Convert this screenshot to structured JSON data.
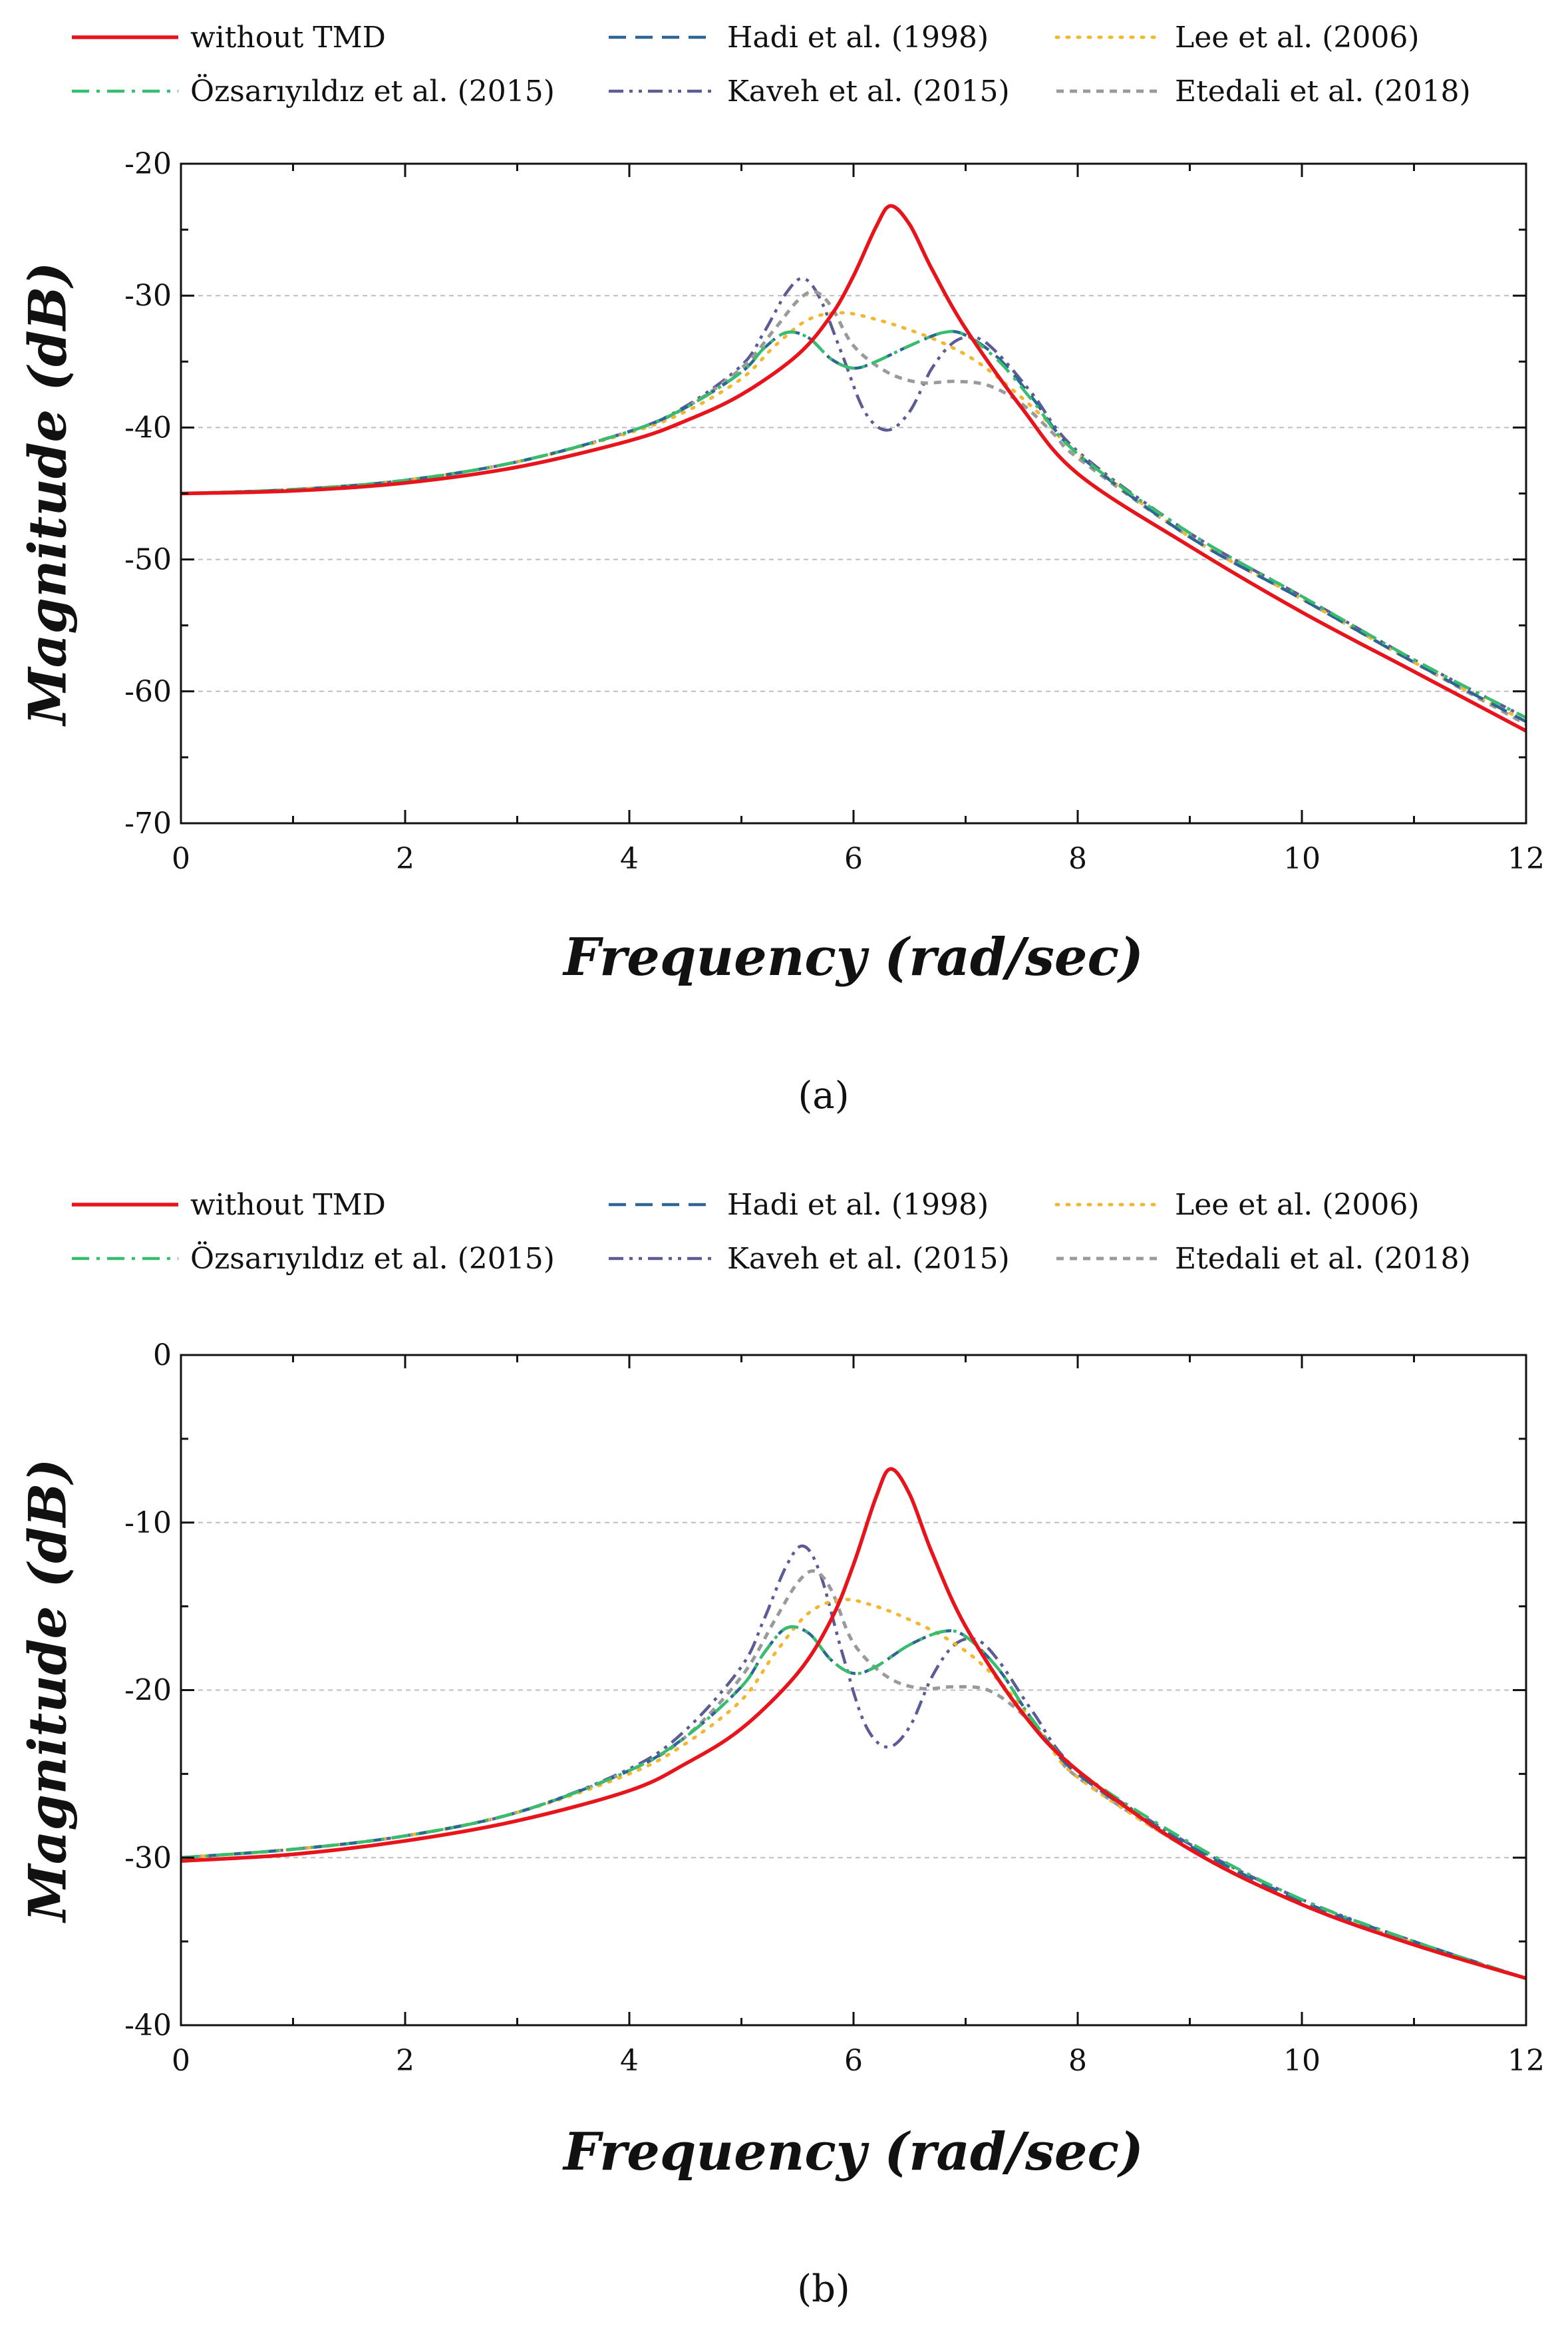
{
  "figure": {
    "panels": [
      {
        "caption": "(a)"
      },
      {
        "caption": "(b)"
      }
    ]
  },
  "legend_entries": [
    {
      "label": "without TMD",
      "color": "#e8141b",
      "dash": "solid"
    },
    {
      "label": "Hadi et al. (1998)",
      "color": "#2d6596",
      "dash": "dash"
    },
    {
      "label": "Lee et al. (2006)",
      "color": "#f2b630",
      "dash": "dot"
    },
    {
      "label": "Özsarıyıldız et al. (2015)",
      "color": "#37bd6e",
      "dash": "dashdot"
    },
    {
      "label": "Kaveh et al. (2015)",
      "color": "#5d5b96",
      "dash": "dashdotdot"
    },
    {
      "label": "Etedali et al. (2018)",
      "color": "#9a9a9a",
      "dash": "shortdash"
    }
  ],
  "chart_data": [
    {
      "type": "line",
      "panel": "(a)",
      "xlabel": "Frequency (rad/sec)",
      "ylabel": "Magnitude (dB)",
      "xlim": [
        0,
        12
      ],
      "ylim": [
        -70,
        -20
      ],
      "xticks": [
        0,
        2,
        4,
        6,
        8,
        10,
        12
      ],
      "yticks": [
        -70,
        -60,
        -50,
        -40,
        -30,
        -20
      ],
      "grid": "horizontal dashed",
      "legend_position": "top, above plot",
      "series": [
        {
          "name": "without TMD",
          "x": [
            0,
            1,
            2,
            3,
            4,
            4.5,
            5,
            5.5,
            5.8,
            6.0,
            6.2,
            6.33,
            6.5,
            6.7,
            7.0,
            7.5,
            8,
            9,
            10,
            11,
            12
          ],
          "y": [
            -45,
            -44.8,
            -44.2,
            -43.0,
            -41.0,
            -39.5,
            -37.5,
            -34.5,
            -31.5,
            -28.5,
            -24.8,
            -23.2,
            -24.6,
            -28.0,
            -32.5,
            -38.5,
            -43.5,
            -49.0,
            -54.0,
            -58.5,
            -63.0
          ]
        },
        {
          "name": "Hadi et al. (1998)",
          "x": [
            0,
            1,
            2,
            3,
            4,
            4.5,
            5,
            5.2,
            5.4,
            5.6,
            5.8,
            6.0,
            6.2,
            6.5,
            6.8,
            7.0,
            7.3,
            7.6,
            8,
            9,
            10,
            11,
            12
          ],
          "y": [
            -45,
            -44.7,
            -44.0,
            -42.6,
            -40.3,
            -38.5,
            -35.8,
            -34.0,
            -32.8,
            -33.2,
            -34.8,
            -35.5,
            -35.0,
            -33.8,
            -32.8,
            -33.0,
            -34.8,
            -37.8,
            -42.0,
            -48.3,
            -53.0,
            -57.8,
            -62.3
          ]
        },
        {
          "name": "Lee et al. (2006)",
          "x": [
            0,
            1,
            2,
            3,
            4,
            4.5,
            5,
            5.3,
            5.6,
            5.9,
            6.2,
            6.5,
            6.8,
            7.1,
            7.4,
            7.7,
            8,
            9,
            10,
            11,
            12
          ],
          "y": [
            -45,
            -44.7,
            -44.0,
            -42.6,
            -40.4,
            -38.8,
            -36.3,
            -33.8,
            -31.8,
            -31.3,
            -31.8,
            -32.6,
            -33.6,
            -35.0,
            -37.0,
            -39.3,
            -42.0,
            -48.3,
            -53.0,
            -57.8,
            -62.3
          ]
        },
        {
          "name": "Özsarıyıldız et al. (2015)",
          "x": [
            0,
            1,
            2,
            3,
            4,
            4.5,
            5,
            5.2,
            5.4,
            5.6,
            5.8,
            6.0,
            6.2,
            6.5,
            6.8,
            7.0,
            7.3,
            7.6,
            8,
            9,
            10,
            11,
            12
          ],
          "y": [
            -45,
            -44.7,
            -44.0,
            -42.6,
            -40.3,
            -38.5,
            -35.8,
            -34.0,
            -32.8,
            -33.2,
            -34.8,
            -35.5,
            -35.0,
            -33.8,
            -32.8,
            -33.0,
            -35.0,
            -38.0,
            -42.0,
            -48.0,
            -52.8,
            -57.6,
            -62.0
          ]
        },
        {
          "name": "Kaveh et al. (2015)",
          "x": [
            0,
            1,
            2,
            3,
            4,
            4.5,
            5,
            5.2,
            5.4,
            5.55,
            5.7,
            5.9,
            6.1,
            6.3,
            6.5,
            6.7,
            6.9,
            7.1,
            7.3,
            7.6,
            8,
            9,
            10,
            11,
            12
          ],
          "y": [
            -45,
            -44.7,
            -44.0,
            -42.6,
            -40.3,
            -38.4,
            -35.3,
            -32.8,
            -29.8,
            -28.7,
            -30.2,
            -34.5,
            -38.8,
            -40.2,
            -38.8,
            -35.5,
            -33.5,
            -33.2,
            -34.5,
            -37.5,
            -41.8,
            -48.0,
            -52.8,
            -57.6,
            -62.0
          ]
        },
        {
          "name": "Etedali et al. (2018)",
          "x": [
            0,
            1,
            2,
            3,
            4,
            4.5,
            5,
            5.3,
            5.5,
            5.65,
            5.8,
            6.0,
            6.3,
            6.6,
            6.9,
            7.2,
            7.5,
            7.8,
            8,
            9,
            10,
            11,
            12
          ],
          "y": [
            -45,
            -44.7,
            -44.0,
            -42.6,
            -40.3,
            -38.5,
            -35.5,
            -32.5,
            -30.4,
            -29.7,
            -30.8,
            -33.8,
            -35.8,
            -36.6,
            -36.5,
            -36.8,
            -38.2,
            -40.6,
            -42.3,
            -48.3,
            -53.0,
            -57.8,
            -62.5
          ]
        }
      ]
    },
    {
      "type": "line",
      "panel": "(b)",
      "xlabel": "Frequency (rad/sec)",
      "ylabel": "Magnitude (dB)",
      "xlim": [
        0,
        12
      ],
      "ylim": [
        -40,
        0
      ],
      "xticks": [
        0,
        2,
        4,
        6,
        8,
        10,
        12
      ],
      "yticks": [
        -40,
        -30,
        -20,
        -10,
        0
      ],
      "grid": "horizontal dashed",
      "legend_position": "top, above plot",
      "series": [
        {
          "name": "without TMD",
          "x": [
            0,
            1,
            2,
            3,
            4,
            4.5,
            5,
            5.5,
            5.8,
            6.0,
            6.2,
            6.33,
            6.5,
            6.7,
            7.0,
            7.5,
            8,
            9,
            10,
            11,
            12
          ],
          "y": [
            -30.2,
            -29.8,
            -29.0,
            -27.8,
            -26.0,
            -24.4,
            -22.3,
            -19.0,
            -15.8,
            -12.5,
            -8.5,
            -6.8,
            -8.3,
            -11.8,
            -16.2,
            -21.3,
            -24.8,
            -29.5,
            -32.8,
            -35.2,
            -37.2
          ]
        },
        {
          "name": "Hadi et al. (1998)",
          "x": [
            0,
            1,
            2,
            3,
            4,
            4.5,
            5,
            5.2,
            5.4,
            5.6,
            5.8,
            6.0,
            6.2,
            6.5,
            6.8,
            7.0,
            7.3,
            7.6,
            8,
            9,
            10,
            11,
            12
          ],
          "y": [
            -30,
            -29.5,
            -28.7,
            -27.3,
            -24.8,
            -22.8,
            -19.8,
            -17.8,
            -16.3,
            -16.6,
            -18.2,
            -19.0,
            -18.6,
            -17.3,
            -16.5,
            -16.8,
            -18.8,
            -21.8,
            -25.0,
            -29.3,
            -32.6,
            -35.0,
            -37.2
          ]
        },
        {
          "name": "Lee et al. (2006)",
          "x": [
            0,
            1,
            2,
            3,
            4,
            4.5,
            5,
            5.3,
            5.6,
            5.9,
            6.2,
            6.5,
            6.8,
            7.1,
            7.4,
            7.7,
            8,
            9,
            10,
            11,
            12
          ],
          "y": [
            -30,
            -29.5,
            -28.7,
            -27.3,
            -25.0,
            -23.2,
            -20.6,
            -17.8,
            -15.4,
            -14.6,
            -15.0,
            -15.8,
            -16.8,
            -18.2,
            -20.2,
            -22.8,
            -25.2,
            -29.5,
            -32.8,
            -35.1,
            -37.2
          ]
        },
        {
          "name": "Özsarıyıldız et al. (2015)",
          "x": [
            0,
            1,
            2,
            3,
            4,
            4.5,
            5,
            5.2,
            5.4,
            5.6,
            5.8,
            6.0,
            6.2,
            6.5,
            6.8,
            7.0,
            7.3,
            7.6,
            8,
            9,
            10,
            11,
            12
          ],
          "y": [
            -30,
            -29.5,
            -28.7,
            -27.3,
            -24.8,
            -22.8,
            -19.8,
            -17.8,
            -16.3,
            -16.6,
            -18.2,
            -19.0,
            -18.6,
            -17.3,
            -16.5,
            -16.8,
            -18.8,
            -21.8,
            -24.8,
            -29.1,
            -32.5,
            -35.0,
            -37.2
          ]
        },
        {
          "name": "Kaveh et al. (2015)",
          "x": [
            0,
            1,
            2,
            3,
            4,
            4.5,
            5,
            5.2,
            5.4,
            5.55,
            5.7,
            5.9,
            6.1,
            6.3,
            6.5,
            6.7,
            6.9,
            7.1,
            7.3,
            7.6,
            8,
            9,
            10,
            11,
            12
          ],
          "y": [
            -30,
            -29.5,
            -28.7,
            -27.3,
            -24.7,
            -22.4,
            -18.6,
            -15.8,
            -12.6,
            -11.4,
            -13.0,
            -17.8,
            -22.0,
            -23.4,
            -22.2,
            -19.2,
            -17.3,
            -17.0,
            -18.3,
            -21.3,
            -24.8,
            -29.2,
            -32.5,
            -35.0,
            -37.2
          ]
        },
        {
          "name": "Etedali et al. (2018)",
          "x": [
            0,
            1,
            2,
            3,
            4,
            4.5,
            5,
            5.3,
            5.5,
            5.65,
            5.8,
            6.0,
            6.3,
            6.6,
            6.9,
            7.2,
            7.5,
            7.8,
            8,
            9,
            10,
            11,
            12
          ],
          "y": [
            -30,
            -29.5,
            -28.7,
            -27.3,
            -24.8,
            -22.8,
            -19.2,
            -15.8,
            -13.6,
            -12.9,
            -14.0,
            -17.2,
            -19.2,
            -19.9,
            -19.8,
            -20.0,
            -21.4,
            -23.6,
            -25.2,
            -29.5,
            -32.8,
            -35.1,
            -37.2
          ]
        }
      ]
    }
  ]
}
